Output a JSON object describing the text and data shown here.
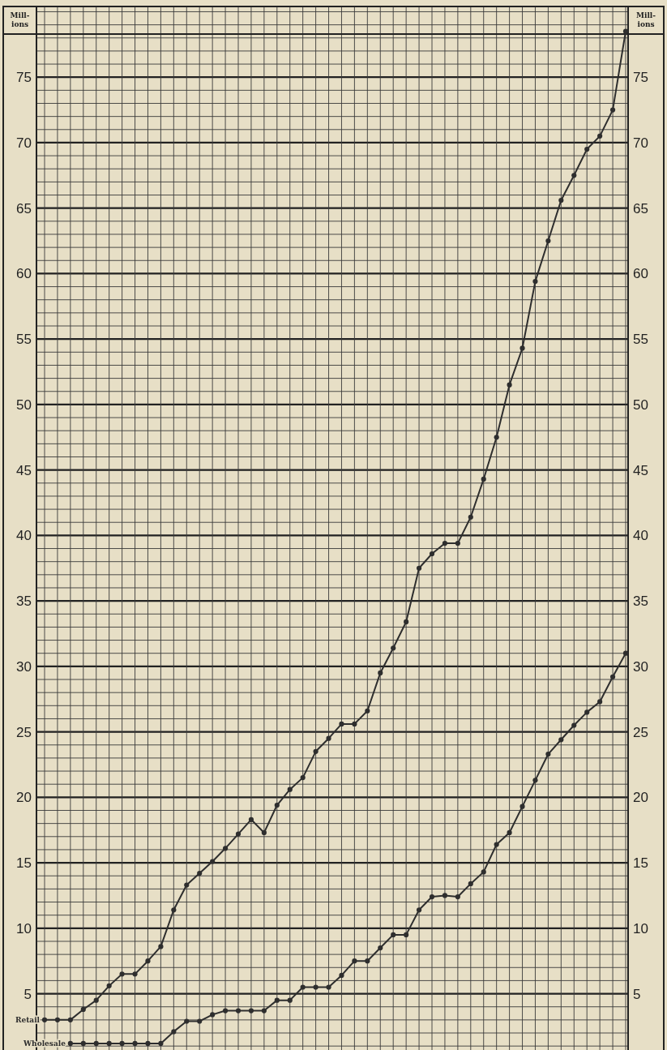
{
  "chart_data": {
    "type": "line",
    "ylabel": "Mill-ions",
    "y2label": "Mill-ions",
    "categories": [
      null,
      null,
      null,
      null,
      null,
      null,
      null,
      null,
      null,
      null,
      null,
      null,
      null,
      null,
      null,
      null,
      null,
      null,
      null,
      null,
      null,
      null,
      null,
      null,
      null,
      null,
      null,
      null,
      null,
      null,
      null,
      null,
      null,
      null,
      null,
      null,
      null,
      null,
      null,
      null,
      null,
      null,
      null,
      null,
      null,
      null
    ],
    "series": [
      {
        "name": "Retail",
        "color": "#2e2e2e",
        "values": [
          3,
          3,
          3,
          3.8,
          4.5,
          5.6,
          6.5,
          6.5,
          7.5,
          8.6,
          11.4,
          13.3,
          14.2,
          15.1,
          16.1,
          17.2,
          18.3,
          17.3,
          19.4,
          20.6,
          21.5,
          23.5,
          24.5,
          25.6,
          25.6,
          26.6,
          29.5,
          31.4,
          33.4,
          37.5,
          38.6,
          39.4,
          39.4,
          41.4,
          44.3,
          47.5,
          51.5,
          54.3,
          59.4,
          62.5,
          65.6,
          67.5,
          69.5,
          70.5,
          72.5,
          78.5
        ]
      },
      {
        "name": "Wholesale",
        "color": "#2e2e2e",
        "values": [
          null,
          null,
          1.2,
          1.2,
          1.2,
          1.2,
          1.2,
          1.2,
          1.2,
          1.2,
          2.1,
          2.9,
          2.9,
          3.4,
          3.7,
          3.7,
          3.7,
          3.7,
          4.5,
          4.5,
          5.5,
          5.5,
          5.5,
          6.4,
          7.5,
          7.5,
          8.5,
          9.5,
          9.5,
          11.4,
          12.4,
          12.5,
          12.4,
          13.4,
          14.3,
          16.4,
          17.3,
          19.3,
          21.3,
          23.3,
          24.4,
          25.5,
          26.5,
          27.3,
          29.2,
          31
        ]
      }
    ],
    "ylim": [
      0.7,
      80.4
    ],
    "yticks": [
      5,
      10,
      15,
      20,
      25,
      30,
      35,
      40,
      45,
      50,
      55,
      60,
      65,
      70,
      75
    ],
    "y2lim": [
      0.7,
      80.4
    ],
    "y2ticks": [
      5,
      10,
      15,
      20,
      25,
      30,
      35,
      40,
      45,
      50,
      55,
      60,
      65,
      70,
      75
    ],
    "grid": true,
    "marker": "circle",
    "line_style": "solid",
    "tick_labels": "y"
  }
}
